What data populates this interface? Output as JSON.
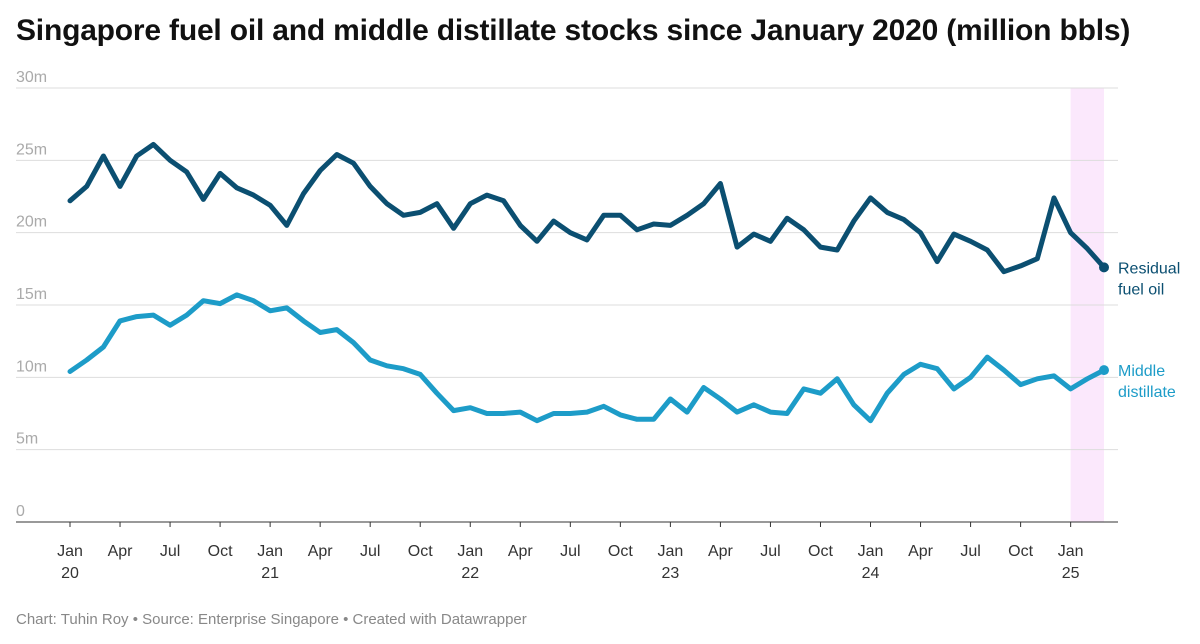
{
  "title": "Singapore fuel oil and middle distillate stocks since January 2020 (million bbls)",
  "footer": "Chart: Tuhin Roy • Source: Enterprise Singapore • Created with Datawrapper",
  "chart_data": {
    "type": "line",
    "title": "Singapore fuel oil and middle distillate stocks since January 2020 (million bbls)",
    "y_ticks": [
      {
        "value": 0,
        "label": "0"
      },
      {
        "value": 5,
        "label": "5m"
      },
      {
        "value": 10,
        "label": "10m"
      },
      {
        "value": 15,
        "label": "15m"
      },
      {
        "value": 20,
        "label": "20m"
      },
      {
        "value": 25,
        "label": "25m"
      },
      {
        "value": 30,
        "label": "30m"
      }
    ],
    "ylim": [
      0,
      30
    ],
    "x_start": "2020-01",
    "x_end": "2025-03",
    "grid": true,
    "x_ticks": [
      {
        "x": "2020-01",
        "label": "Jan",
        "sublabel": "20"
      },
      {
        "x": "2020-04",
        "label": "Apr",
        "sublabel": ""
      },
      {
        "x": "2020-07",
        "label": "Jul",
        "sublabel": ""
      },
      {
        "x": "2020-10",
        "label": "Oct",
        "sublabel": ""
      },
      {
        "x": "2021-01",
        "label": "Jan",
        "sublabel": "21"
      },
      {
        "x": "2021-04",
        "label": "Apr",
        "sublabel": ""
      },
      {
        "x": "2021-07",
        "label": "Jul",
        "sublabel": ""
      },
      {
        "x": "2021-10",
        "label": "Oct",
        "sublabel": ""
      },
      {
        "x": "2022-01",
        "label": "Jan",
        "sublabel": "22"
      },
      {
        "x": "2022-04",
        "label": "Apr",
        "sublabel": ""
      },
      {
        "x": "2022-07",
        "label": "Jul",
        "sublabel": ""
      },
      {
        "x": "2022-10",
        "label": "Oct",
        "sublabel": ""
      },
      {
        "x": "2023-01",
        "label": "Jan",
        "sublabel": "23"
      },
      {
        "x": "2023-04",
        "label": "Apr",
        "sublabel": ""
      },
      {
        "x": "2023-07",
        "label": "Jul",
        "sublabel": ""
      },
      {
        "x": "2023-10",
        "label": "Oct",
        "sublabel": ""
      },
      {
        "x": "2024-01",
        "label": "Jan",
        "sublabel": "24"
      },
      {
        "x": "2024-04",
        "label": "Apr",
        "sublabel": ""
      },
      {
        "x": "2024-07",
        "label": "Jul",
        "sublabel": ""
      },
      {
        "x": "2024-10",
        "label": "Oct",
        "sublabel": ""
      },
      {
        "x": "2025-01",
        "label": "Jan",
        "sublabel": "25"
      }
    ],
    "highlight": {
      "from": "2025-01",
      "to": "2025-03",
      "color": "#fbe8fc"
    },
    "series": [
      {
        "name": "Residual fuel oil",
        "label_lines": [
          "Residual",
          "fuel oil"
        ],
        "color": "#0b4f71",
        "start": "2020-01",
        "values": [
          22.2,
          23.2,
          25.3,
          23.2,
          25.3,
          26.1,
          25.0,
          24.2,
          22.3,
          24.1,
          23.1,
          22.6,
          21.9,
          20.5,
          22.7,
          24.3,
          25.4,
          24.8,
          23.2,
          22.0,
          21.2,
          21.4,
          22.0,
          20.3,
          22.0,
          22.6,
          22.2,
          20.5,
          19.4,
          20.8,
          20.0,
          19.5,
          21.2,
          21.2,
          20.2,
          20.6,
          20.5,
          21.2,
          22.0,
          23.4,
          19.0,
          19.9,
          19.4,
          21.0,
          20.2,
          19.0,
          18.8,
          20.8,
          22.4,
          21.4,
          20.9,
          20.0,
          18.0,
          19.9,
          19.4,
          18.8,
          17.3,
          17.7,
          18.2,
          22.4,
          20.0,
          18.9,
          17.6
        ]
      },
      {
        "name": "Middle distillate",
        "label_lines": [
          "Middle",
          "distillate"
        ],
        "color": "#1d9cc8",
        "start": "2020-01",
        "values": [
          10.4,
          11.2,
          12.1,
          13.9,
          14.2,
          14.3,
          13.6,
          14.3,
          15.3,
          15.1,
          15.7,
          15.3,
          14.6,
          14.8,
          13.9,
          13.1,
          13.3,
          12.4,
          11.2,
          10.8,
          10.6,
          10.2,
          8.9,
          7.7,
          7.9,
          7.5,
          7.5,
          7.6,
          7.0,
          7.5,
          7.5,
          7.6,
          8.0,
          7.4,
          7.1,
          7.1,
          8.5,
          7.6,
          9.3,
          8.5,
          7.6,
          8.1,
          7.6,
          7.5,
          9.2,
          8.9,
          9.9,
          8.1,
          7.0,
          8.9,
          10.2,
          10.9,
          10.6,
          9.2,
          10.0,
          11.4,
          10.5,
          9.5,
          9.9,
          10.1,
          9.2,
          9.9,
          10.5
        ]
      }
    ]
  }
}
